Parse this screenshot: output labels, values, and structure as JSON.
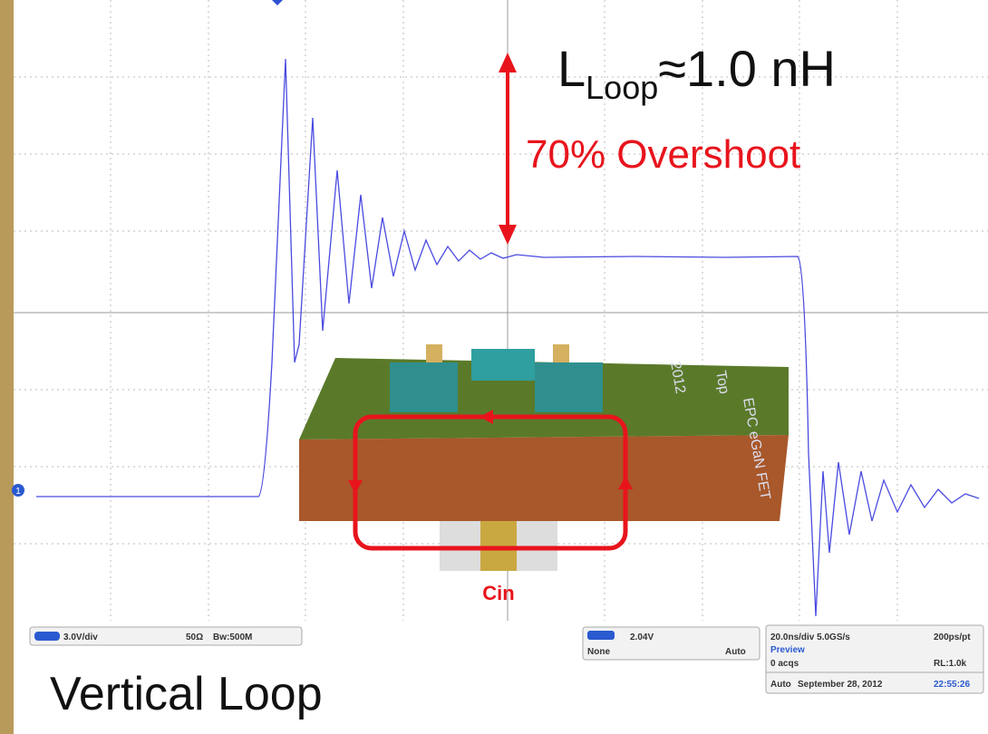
{
  "header": {
    "inductance_symbol": "L",
    "inductance_subscript": "Loop",
    "inductance_value": "≈1.0 nH",
    "overshoot": "70% Overshoot"
  },
  "diagram": {
    "capacitor_label": "Cin",
    "board_labels": [
      "EPC eGaN FET",
      "2012",
      "Top"
    ]
  },
  "channel_marker": "1",
  "scope_status": {
    "channel_scale": "3.0V/div",
    "impedance": "50Ω",
    "bandwidth": "Bw:500M",
    "trigger_level": "2.04V",
    "trigger_coupling": "None",
    "trigger_mode": "Auto",
    "timebase": "20.0ns/div 5.0GS/s",
    "resolution": "200ps/pt",
    "state": "Preview",
    "acquisitions": "0 acqs",
    "record_length": "RL:1.0k",
    "run_mode": "Auto",
    "date": "September 28, 2012",
    "time": "22:55:26"
  },
  "footer": {
    "caption": "Vertical Loop"
  }
}
